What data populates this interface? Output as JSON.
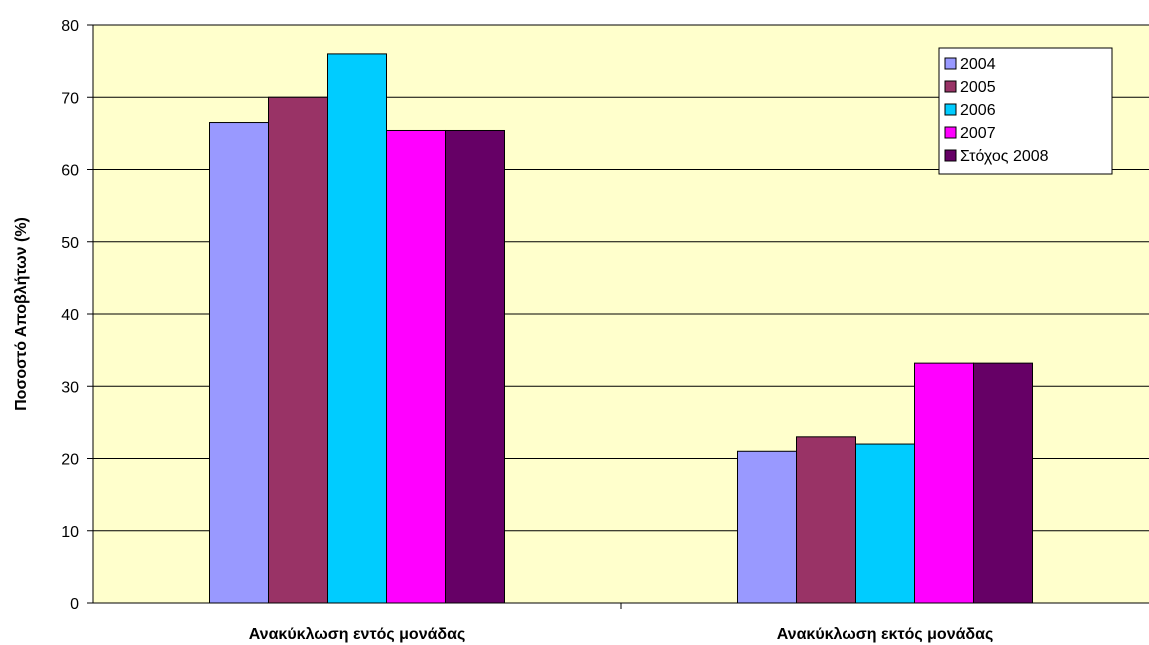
{
  "chart_data": {
    "type": "bar",
    "categories": [
      "Ανακύκλωση εντός μονάδας",
      "Ανακύκλωση εκτός μονάδας"
    ],
    "series": [
      {
        "name": "2004",
        "values": [
          66.5,
          21
        ],
        "color": "#9999FF"
      },
      {
        "name": "2005",
        "values": [
          70,
          23
        ],
        "color": "#993366"
      },
      {
        "name": "2006",
        "values": [
          76,
          22
        ],
        "color": "#00CCFF"
      },
      {
        "name": "2007",
        "values": [
          65.4,
          33.2
        ],
        "color": "#FF00FF"
      },
      {
        "name": "Στόχος 2008",
        "values": [
          65.4,
          33.2
        ],
        "color": "#660066"
      }
    ],
    "ylabel": "Ποσοστό Αποβλήτων (%)",
    "xlabel": "",
    "ylim": [
      0,
      80
    ],
    "yticks": [
      "0",
      "10",
      "20",
      "30",
      "40",
      "50",
      "60",
      "70",
      "80"
    ],
    "grid": true,
    "legend_position": "top-right",
    "plot_background": "#FFFFCC"
  }
}
